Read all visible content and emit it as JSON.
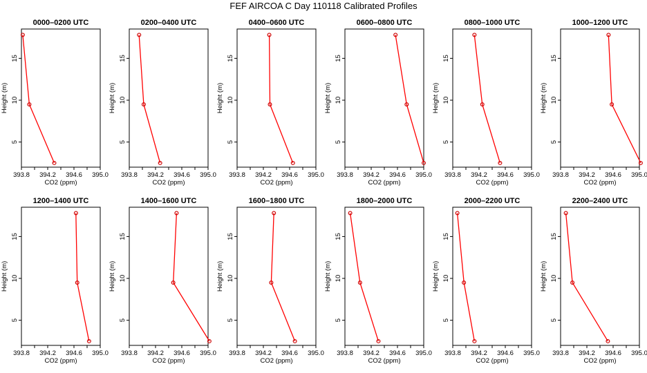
{
  "title": "FEF AIRCOA C  Day 110118  Calibrated Profiles",
  "colors": {
    "line": "#ff0000",
    "marker": "#cc0000",
    "axes": "#000000",
    "background": "#ffffff"
  },
  "chart_data": {
    "type": "line",
    "layout": "2 rows x 6 columns of small multiples",
    "xlabel": "CO2 (ppm)",
    "ylabel": "Height (m)",
    "xlim": [
      393.8,
      395.0
    ],
    "ylim": [
      2.0,
      18.5
    ],
    "xticks": [
      "393.8",
      "394.2",
      "394.6",
      "395.0"
    ],
    "yticks": [
      "5",
      "10",
      "15"
    ],
    "heights": [
      2.5,
      9.5,
      17.8
    ],
    "panels": [
      {
        "title": "0000–0200 UTC",
        "values": [
          394.3,
          393.92,
          393.82
        ]
      },
      {
        "title": "0200–0400 UTC",
        "values": [
          394.27,
          394.02,
          393.95
        ]
      },
      {
        "title": "0400–0600 UTC",
        "values": [
          394.65,
          394.3,
          394.29
        ]
      },
      {
        "title": "0600–0800 UTC",
        "values": [
          395.0,
          394.74,
          394.57
        ]
      },
      {
        "title": "0800–1000 UTC",
        "values": [
          394.52,
          394.25,
          394.13
        ]
      },
      {
        "title": "1000–1200 UTC",
        "values": [
          395.02,
          394.58,
          394.53
        ]
      },
      {
        "title": "1200–1400 UTC",
        "values": [
          394.83,
          394.65,
          394.63
        ]
      },
      {
        "title": "1400–1600 UTC",
        "values": [
          395.02,
          394.47,
          394.52
        ]
      },
      {
        "title": "1600–1800 UTC",
        "values": [
          394.68,
          394.32,
          394.36
        ]
      },
      {
        "title": "1800–2000 UTC",
        "values": [
          394.31,
          394.03,
          393.88
        ]
      },
      {
        "title": "2000–2200 UTC",
        "values": [
          394.13,
          393.97,
          393.87
        ]
      },
      {
        "title": "2200–2400 UTC",
        "values": [
          394.52,
          393.98,
          393.88
        ]
      }
    ]
  }
}
